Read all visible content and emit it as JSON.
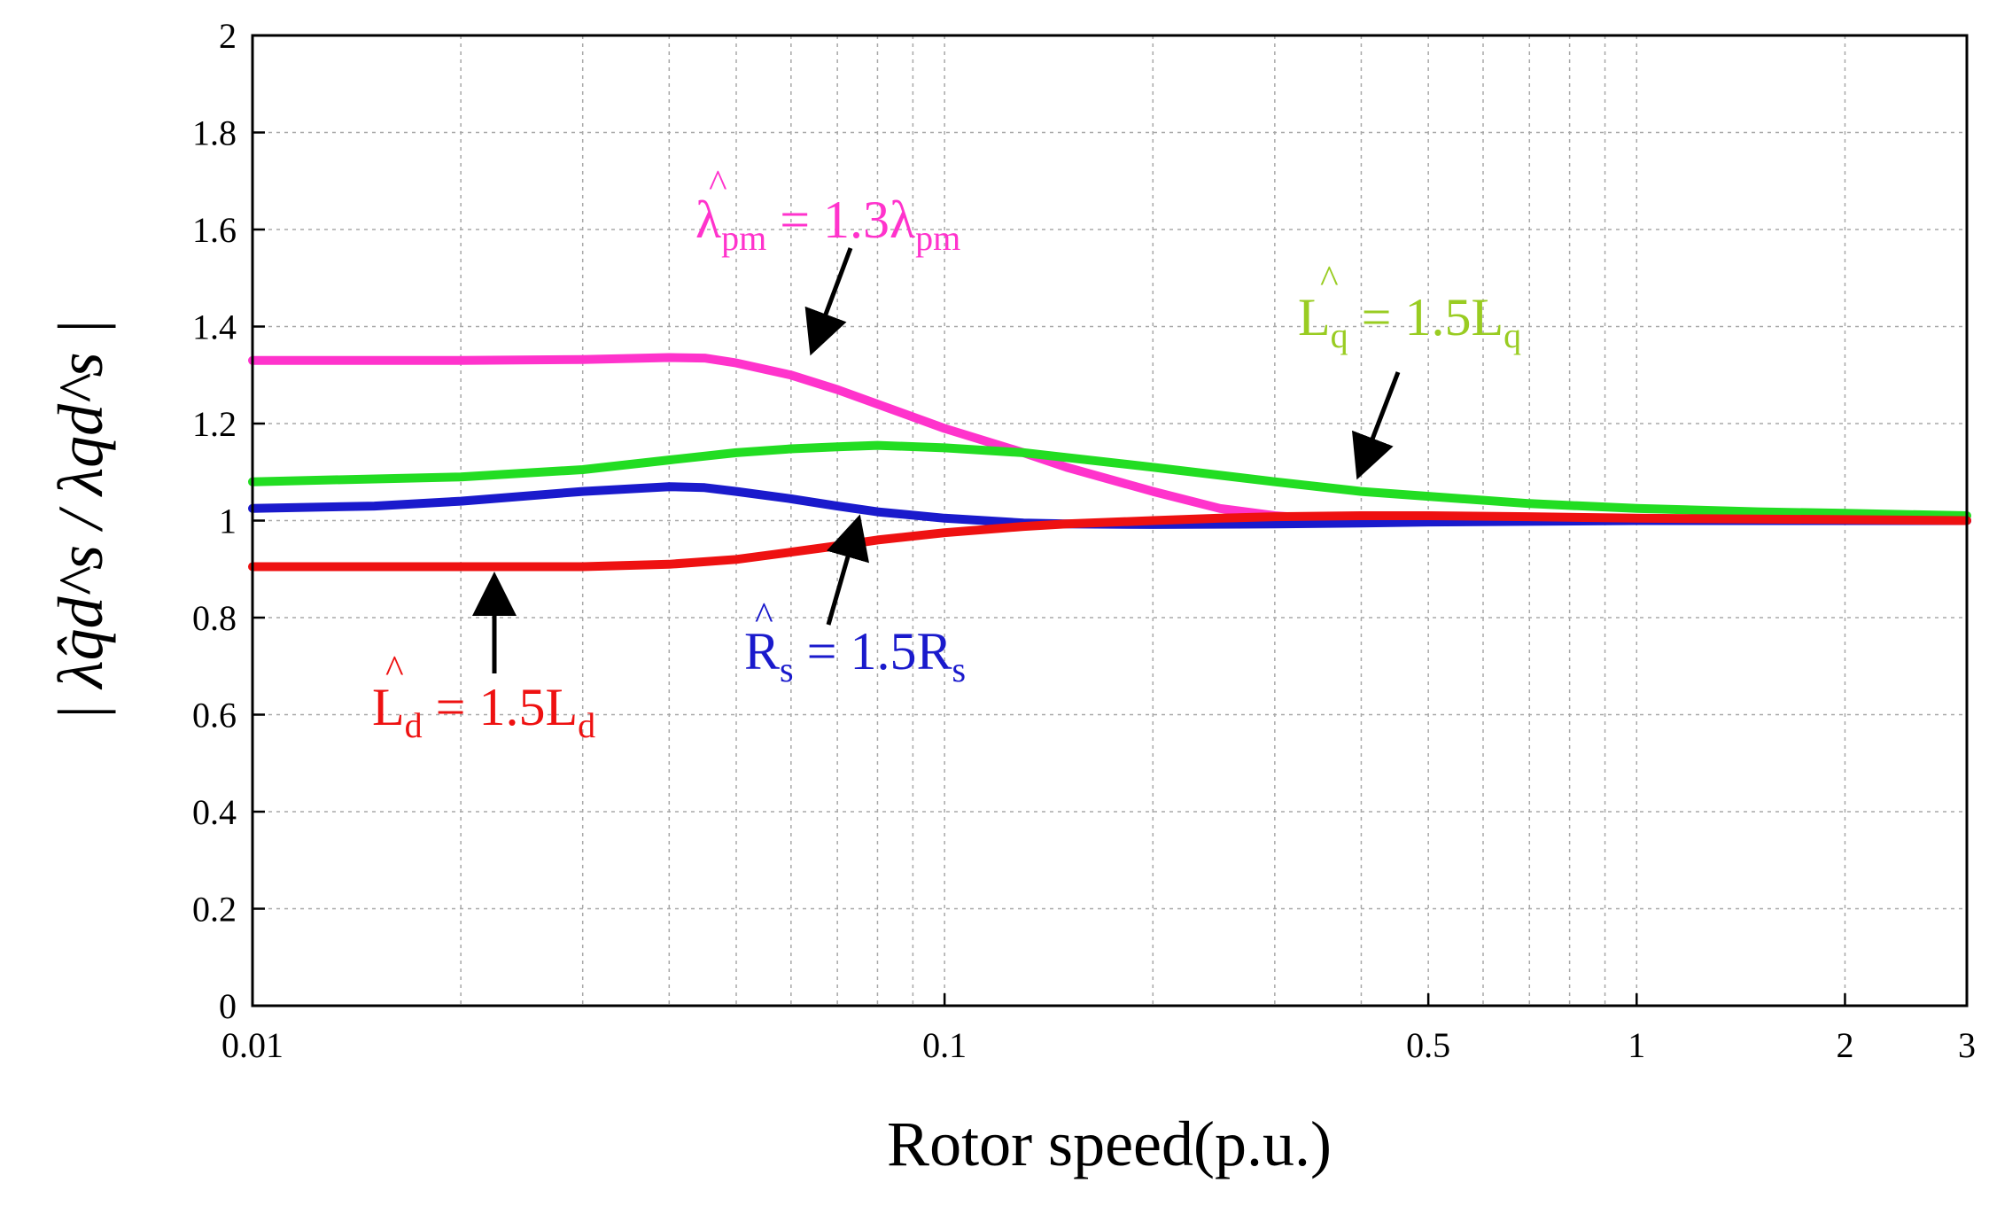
{
  "chart_data": {
    "type": "line",
    "title": "",
    "xlabel": "Rotor speed(p.u.)",
    "ylabel": "| λ̂qd^s / λqd^s |",
    "xscale": "log",
    "xlim": [
      0.01,
      3
    ],
    "ylim": [
      0,
      2
    ],
    "grid": true,
    "xticks": [
      {
        "value": 0.01,
        "label": "0.01"
      },
      {
        "value": 0.1,
        "label": "0.1"
      },
      {
        "value": 0.5,
        "label": "0.5"
      },
      {
        "value": 1,
        "label": "1"
      },
      {
        "value": 2,
        "label": "2"
      },
      {
        "value": 3,
        "label": "3"
      }
    ],
    "yticks": [
      {
        "value": 0,
        "label": "0"
      },
      {
        "value": 0.2,
        "label": "0.2"
      },
      {
        "value": 0.4,
        "label": "0.4"
      },
      {
        "value": 0.6,
        "label": "0.6"
      },
      {
        "value": 0.8,
        "label": "0.8"
      },
      {
        "value": 1,
        "label": "1"
      },
      {
        "value": 1.2,
        "label": "1.2"
      },
      {
        "value": 1.4,
        "label": "1.4"
      },
      {
        "value": 1.6,
        "label": "1.6"
      },
      {
        "value": 1.8,
        "label": "1.8"
      },
      {
        "value": 2,
        "label": "2"
      }
    ],
    "series": [
      {
        "name": "lambda_pm",
        "label": {
          "base": "λ",
          "sub": "pm",
          "eq": " = 1.3λ",
          "sub2": "pm"
        },
        "color": "#ff33cc",
        "x": [
          0.01,
          0.02,
          0.03,
          0.04,
          0.045,
          0.05,
          0.06,
          0.07,
          0.08,
          0.1,
          0.13,
          0.15,
          0.2,
          0.25,
          0.3,
          0.35,
          0.4,
          0.5,
          0.7,
          1,
          2,
          3
        ],
        "y": [
          1.33,
          1.33,
          1.332,
          1.336,
          1.335,
          1.325,
          1.3,
          1.27,
          1.24,
          1.19,
          1.14,
          1.11,
          1.06,
          1.025,
          1.01,
          1.003,
          1.0,
          1.0,
          1.0,
          1.0,
          1.0,
          1.0
        ]
      },
      {
        "name": "L_q",
        "label": {
          "base": "L",
          "sub": "q",
          "eq": " = 1.5L",
          "sub2": "q"
        },
        "color": "#22dd22",
        "x": [
          0.01,
          0.02,
          0.03,
          0.04,
          0.05,
          0.06,
          0.07,
          0.08,
          0.1,
          0.13,
          0.15,
          0.2,
          0.3,
          0.4,
          0.5,
          0.7,
          1,
          1.5,
          2,
          3
        ],
        "y": [
          1.08,
          1.09,
          1.105,
          1.125,
          1.14,
          1.148,
          1.152,
          1.155,
          1.15,
          1.14,
          1.13,
          1.11,
          1.08,
          1.06,
          1.05,
          1.035,
          1.025,
          1.018,
          1.015,
          1.01
        ]
      },
      {
        "name": "R_s",
        "label": {
          "base": "R",
          "sub": "s",
          "eq": " = 1.5R",
          "sub2": "s"
        },
        "color": "#1a1acc",
        "x": [
          0.01,
          0.015,
          0.02,
          0.03,
          0.04,
          0.045,
          0.05,
          0.06,
          0.07,
          0.08,
          0.1,
          0.13,
          0.15,
          0.2,
          0.3,
          0.4,
          0.5,
          1,
          2,
          3
        ],
        "y": [
          1.025,
          1.03,
          1.04,
          1.06,
          1.07,
          1.068,
          1.06,
          1.045,
          1.03,
          1.018,
          1.005,
          0.995,
          0.993,
          0.992,
          0.993,
          0.995,
          0.997,
          1.0,
          1.0,
          1.0
        ]
      },
      {
        "name": "L_d",
        "label": {
          "base": "L",
          "sub": "d",
          "eq": " = 1.5L",
          "sub2": "d"
        },
        "color": "#ee1111",
        "x": [
          0.01,
          0.02,
          0.03,
          0.04,
          0.05,
          0.06,
          0.07,
          0.08,
          0.1,
          0.13,
          0.15,
          0.2,
          0.25,
          0.3,
          0.4,
          0.5,
          0.7,
          1,
          2,
          3
        ],
        "y": [
          0.905,
          0.905,
          0.905,
          0.91,
          0.92,
          0.935,
          0.948,
          0.96,
          0.975,
          0.988,
          0.993,
          1.0,
          1.005,
          1.008,
          1.01,
          1.01,
          1.008,
          1.005,
          1.002,
          1.0
        ]
      }
    ]
  }
}
